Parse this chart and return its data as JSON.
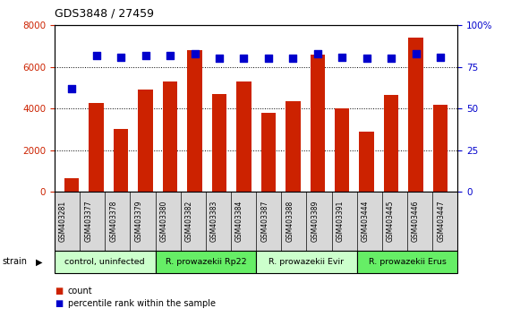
{
  "title": "GDS3848 / 27459",
  "samples": [
    "GSM403281",
    "GSM403377",
    "GSM403378",
    "GSM403379",
    "GSM403380",
    "GSM403382",
    "GSM403383",
    "GSM403384",
    "GSM403387",
    "GSM403388",
    "GSM403389",
    "GSM403391",
    "GSM403444",
    "GSM403445",
    "GSM403446",
    "GSM403447"
  ],
  "counts": [
    650,
    4250,
    3000,
    4900,
    5300,
    6800,
    4700,
    5300,
    3800,
    4350,
    6600,
    4000,
    2900,
    4650,
    7400,
    4200
  ],
  "percentiles": [
    62,
    82,
    81,
    82,
    82,
    83,
    80,
    80,
    80,
    80,
    83,
    81,
    80,
    80,
    83,
    81
  ],
  "groups": [
    {
      "label": "control, uninfected",
      "start": 0,
      "end": 4,
      "color": "#ccffcc"
    },
    {
      "label": "R. prowazekii Rp22",
      "start": 4,
      "end": 8,
      "color": "#66ee66"
    },
    {
      "label": "R. prowazekii Evir",
      "start": 8,
      "end": 12,
      "color": "#ccffcc"
    },
    {
      "label": "R. prowazekii Erus",
      "start": 12,
      "end": 16,
      "color": "#66ee66"
    }
  ],
  "bar_color": "#cc2200",
  "dot_color": "#0000cc",
  "ylim_left": [
    0,
    8000
  ],
  "ylim_right": [
    0,
    100
  ],
  "yticks_left": [
    0,
    2000,
    4000,
    6000,
    8000
  ],
  "yticks_right": [
    0,
    25,
    50,
    75,
    100
  ],
  "legend_count_color": "#cc2200",
  "legend_pct_color": "#0000cc"
}
